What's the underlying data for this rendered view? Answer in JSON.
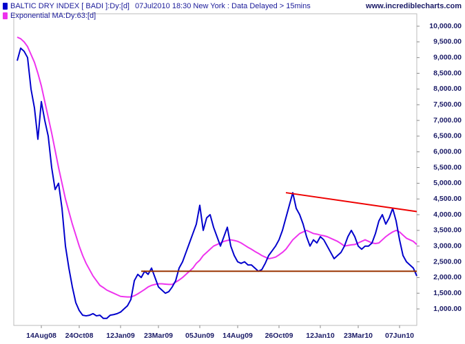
{
  "chart_data": {
    "type": "line",
    "subtitle": "07Jul2010 18:30 New York : Data Delayed > 15mins",
    "source": "www.incrediblecharts.com",
    "categories": [
      null,
      null,
      null,
      null,
      null,
      null,
      null,
      "14Aug08",
      null,
      null,
      null,
      null,
      null,
      null,
      null,
      null,
      null,
      null,
      "24Oct08",
      null,
      null,
      null,
      null,
      null,
      null,
      null,
      null,
      null,
      null,
      null,
      "12Jan09",
      null,
      null,
      null,
      null,
      null,
      null,
      null,
      null,
      null,
      null,
      "23Mar09",
      null,
      null,
      null,
      null,
      null,
      null,
      null,
      null,
      null,
      null,
      null,
      "05Jun09",
      null,
      null,
      null,
      null,
      null,
      null,
      null,
      null,
      null,
      null,
      "14Aug09",
      null,
      null,
      null,
      null,
      null,
      null,
      null,
      null,
      null,
      null,
      null,
      "26Oct09",
      null,
      null,
      null,
      null,
      null,
      null,
      null,
      null,
      null,
      null,
      null,
      "12Jan10",
      null,
      null,
      null,
      null,
      null,
      null,
      null,
      null,
      null,
      null,
      "23Mar10",
      null,
      null,
      null,
      null,
      null,
      null,
      null,
      null,
      null,
      null,
      null,
      "07Jun10",
      null,
      null,
      null,
      null,
      null
    ],
    "series": [
      {
        "name": "BALTIC DRY INDEX [ BADI ]:Dy:[d]",
        "color": "#0000cc",
        "values": [
          8900,
          9300,
          9200,
          9000,
          8000,
          7400,
          6400,
          7600,
          7000,
          6500,
          5500,
          4800,
          5000,
          4200,
          3000,
          2300,
          1700,
          1200,
          950,
          800,
          780,
          800,
          850,
          780,
          800,
          700,
          700,
          800,
          820,
          850,
          900,
          1000,
          1100,
          1300,
          1900,
          2100,
          2000,
          2200,
          2100,
          2300,
          2000,
          1700,
          1600,
          1500,
          1550,
          1700,
          1900,
          2300,
          2500,
          2800,
          3100,
          3400,
          3700,
          4300,
          3500,
          3900,
          4000,
          3600,
          3300,
          3000,
          3300,
          3600,
          3000,
          2700,
          2500,
          2450,
          2500,
          2400,
          2400,
          2300,
          2200,
          2250,
          2450,
          2700,
          2850,
          3000,
          3200,
          3500,
          3900,
          4300,
          4700,
          4200,
          4000,
          3700,
          3300,
          3000,
          3200,
          3100,
          3300,
          3200,
          3000,
          2800,
          2600,
          2700,
          2800,
          3000,
          3300,
          3500,
          3300,
          3000,
          2900,
          3000,
          3000,
          3100,
          3400,
          3800,
          4000,
          3700,
          3900,
          4200,
          3800,
          3200,
          2700,
          2500,
          2400,
          2300,
          2050
        ]
      },
      {
        "name": "Exponential MA:Dy:63:[d]",
        "color": "#ee33ee",
        "values": [
          9650,
          9600,
          9500,
          9350,
          9100,
          8850,
          8500,
          8100,
          7600,
          7100,
          6600,
          6050,
          5500,
          5000,
          4500,
          4100,
          3700,
          3350,
          3000,
          2700,
          2450,
          2250,
          2050,
          1900,
          1750,
          1680,
          1600,
          1550,
          1500,
          1450,
          1400,
          1390,
          1380,
          1380,
          1420,
          1480,
          1550,
          1620,
          1700,
          1750,
          1780,
          1800,
          1800,
          1790,
          1780,
          1780,
          1850,
          1920,
          2000,
          2100,
          2200,
          2300,
          2450,
          2550,
          2700,
          2800,
          2900,
          3000,
          3050,
          3100,
          3150,
          3180,
          3200,
          3180,
          3150,
          3100,
          3030,
          2960,
          2900,
          2830,
          2770,
          2700,
          2650,
          2600,
          2620,
          2650,
          2720,
          2800,
          2900,
          3050,
          3200,
          3300,
          3400,
          3450,
          3500,
          3450,
          3400,
          3380,
          3350,
          3330,
          3300,
          3250,
          3200,
          3150,
          3080,
          3000,
          3020,
          3040,
          3050,
          3100,
          3150,
          3200,
          3150,
          3100,
          3080,
          3100,
          3200,
          3300,
          3380,
          3450,
          3500,
          3450,
          3350,
          3250,
          3200,
          3150,
          3050
        ]
      }
    ],
    "trendlines": [
      {
        "color": "#993300",
        "x": [
          36,
          116
        ],
        "values": [
          2200,
          2200
        ]
      },
      {
        "color": "#ee0000",
        "x": [
          78,
          116
        ],
        "values": [
          4700,
          4100
        ]
      }
    ],
    "ylim": [
      475,
      10395
    ],
    "yticks": [
      {
        "value": 1000,
        "label": "1,000.00"
      },
      {
        "value": 1500,
        "label": "1,500.00"
      },
      {
        "value": 2000,
        "label": "2,000.00"
      },
      {
        "value": 2500,
        "label": "2,500.00"
      },
      {
        "value": 3000,
        "label": "3,000.00"
      },
      {
        "value": 3500,
        "label": "3,500.00"
      },
      {
        "value": 4000,
        "label": "4,000.00"
      },
      {
        "value": 4500,
        "label": "4,500.00"
      },
      {
        "value": 5000,
        "label": "5,000.00"
      },
      {
        "value": 5500,
        "label": "5,500.00"
      },
      {
        "value": 6000,
        "label": "6,000.00"
      },
      {
        "value": 6500,
        "label": "6,500.00"
      },
      {
        "value": 7000,
        "label": "7,000.00"
      },
      {
        "value": 7500,
        "label": "7,500.00"
      },
      {
        "value": 8000,
        "label": "8,000.00"
      },
      {
        "value": 8500,
        "label": "8,500.00"
      },
      {
        "value": 9000,
        "label": "9,000.00"
      },
      {
        "value": 9500,
        "label": "9,500.00"
      },
      {
        "value": 10000,
        "label": "10,000.00"
      }
    ],
    "grid": false
  }
}
